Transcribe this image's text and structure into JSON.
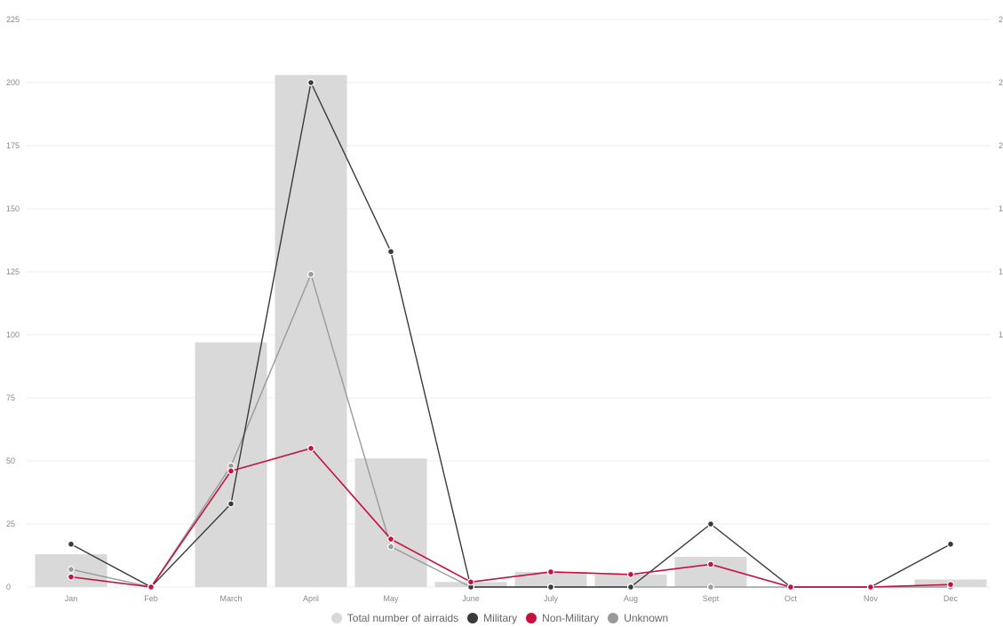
{
  "chart_data": {
    "type": "bar",
    "categories": [
      "Jan",
      "Feb",
      "March",
      "April",
      "May",
      "June",
      "July",
      "Aug",
      "Sept",
      "Oct",
      "Nov",
      "Dec"
    ],
    "ylim": [
      0,
      225
    ],
    "yticks": [
      0,
      25,
      50,
      75,
      100,
      125,
      150,
      175,
      200,
      225
    ],
    "right_axis_ticks": [
      "2",
      "2",
      "2",
      "1",
      "1",
      "1"
    ],
    "grid": true,
    "legend_placement": "bottom",
    "series": [
      {
        "name": "Total number of airraids",
        "kind": "bar",
        "color": "#d9d9d9",
        "values": [
          13,
          0,
          97,
          203,
          51,
          2,
          6,
          5,
          12,
          0,
          0,
          3
        ]
      },
      {
        "name": "Military",
        "kind": "line",
        "color": "#3a3a3a",
        "values": [
          17,
          0,
          33,
          200,
          133,
          0,
          0,
          0,
          25,
          0,
          0,
          17
        ]
      },
      {
        "name": "Non-Military",
        "kind": "line",
        "color": "#c8103e",
        "values": [
          4,
          0,
          46,
          55,
          19,
          2,
          6,
          5,
          9,
          0,
          0,
          1
        ]
      },
      {
        "name": "Unknown",
        "kind": "line",
        "color": "#9a9a9a",
        "values": [
          7,
          0,
          48,
          124,
          16,
          0,
          0,
          0,
          0,
          0,
          0,
          0
        ]
      }
    ]
  }
}
